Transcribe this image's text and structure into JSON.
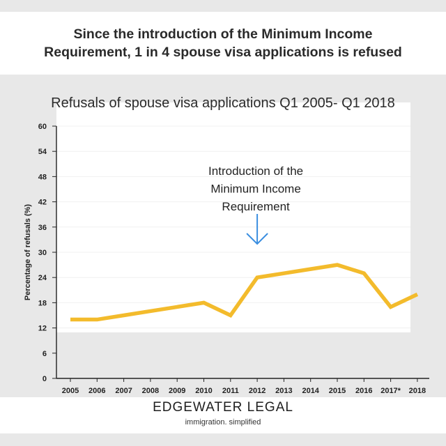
{
  "headline": "Since the introduction of the Minimum Income Requirement, 1 in 4 spouse visa applications is refused",
  "footer": {
    "brand": "EDGEWATER LEGAL",
    "tagline": "immigration. simplified"
  },
  "colors": {
    "line": "#f3bb2c",
    "arrow": "#3a8ee0",
    "axis": "#222222",
    "plot_background": "#ffffff"
  },
  "chart_data": {
    "type": "line",
    "title": "Refusals of spouse visa applications Q1 2005- Q1 2018",
    "xlabel": "",
    "ylabel": "Percentage of refusals (%)",
    "categories": [
      "2005",
      "2006",
      "2007",
      "2008",
      "2009",
      "2010",
      "2011",
      "2012",
      "2013",
      "2014",
      "2015",
      "2016",
      "2017*",
      "2018"
    ],
    "values": [
      14,
      14,
      15,
      16,
      17,
      18,
      15,
      24,
      25,
      26,
      27,
      25,
      17,
      20
    ],
    "ylim": [
      0,
      60
    ],
    "yticks": [
      0,
      6,
      12,
      18,
      24,
      30,
      36,
      42,
      48,
      54,
      60
    ],
    "grid": false,
    "annotation": {
      "text_lines": [
        "Introduction of the",
        "Minimum Income",
        "Requirement"
      ],
      "x_category": "2012"
    }
  }
}
